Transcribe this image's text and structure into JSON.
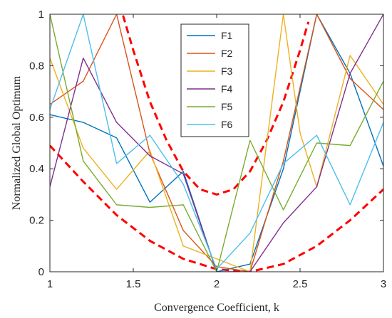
{
  "chart_data": {
    "type": "line",
    "title": "",
    "xlabel": "Convergence Coefficient, k",
    "ylabel": "Normalized Global Optimum",
    "xlim": [
      1,
      3
    ],
    "ylim": [
      0,
      1
    ],
    "x_ticks": [
      "1",
      "1.5",
      "2",
      "2.5",
      "3"
    ],
    "y_ticks": [
      "0",
      "0.2",
      "0.4",
      "0.6",
      "0.8",
      "1"
    ],
    "grid": false,
    "legend_position": "top-center",
    "series": [
      {
        "name": "F1",
        "color": "#0072BD",
        "x": [
          1.0,
          1.2,
          1.4,
          1.6,
          1.8,
          2.0,
          2.2,
          2.4,
          2.6,
          2.8,
          3.0
        ],
        "y": [
          0.61,
          0.58,
          0.52,
          0.27,
          0.39,
          0.0,
          0.03,
          0.4,
          1.0,
          0.77,
          0.41
        ]
      },
      {
        "name": "F2",
        "color": "#D95319",
        "x": [
          1.0,
          1.2,
          1.4,
          1.6,
          1.8,
          2.0,
          2.2,
          2.4,
          2.6,
          2.8,
          3.0
        ],
        "y": [
          0.65,
          0.74,
          1.0,
          0.46,
          0.16,
          0.02,
          0.0,
          0.43,
          1.0,
          0.75,
          0.63
        ]
      },
      {
        "name": "F3",
        "color": "#EDB120",
        "x": [
          1.0,
          1.2,
          1.4,
          1.6,
          1.8,
          2.0,
          2.2,
          2.4,
          2.5,
          2.6,
          2.8,
          3.0
        ],
        "y": [
          0.83,
          0.48,
          0.32,
          0.47,
          0.1,
          0.05,
          0.0,
          1.0,
          0.54,
          0.33,
          0.84,
          0.65
        ]
      },
      {
        "name": "F4",
        "color": "#7E2F8E",
        "x": [
          1.0,
          1.2,
          1.4,
          1.6,
          1.8,
          2.0,
          2.2,
          2.4,
          2.6,
          2.8,
          3.0
        ],
        "y": [
          0.33,
          0.83,
          0.58,
          0.45,
          0.38,
          0.0,
          0.0,
          0.19,
          0.33,
          0.77,
          1.0
        ]
      },
      {
        "name": "F5",
        "color": "#77AC30",
        "x": [
          1.0,
          1.2,
          1.4,
          1.6,
          1.8,
          2.0,
          2.2,
          2.4,
          2.6,
          2.8,
          3.0
        ],
        "y": [
          1.0,
          0.43,
          0.26,
          0.25,
          0.26,
          0.0,
          0.51,
          0.24,
          0.5,
          0.49,
          0.74
        ]
      },
      {
        "name": "F6",
        "color": "#4DBEEE",
        "x": [
          1.0,
          1.2,
          1.4,
          1.6,
          1.8,
          2.0,
          2.2,
          2.4,
          2.6,
          2.8,
          3.0
        ],
        "y": [
          0.63,
          1.0,
          0.42,
          0.53,
          0.34,
          0.01,
          0.15,
          0.42,
          0.53,
          0.26,
          0.58
        ]
      }
    ],
    "bounds": [
      {
        "kind": "upper",
        "color": "#FF0000",
        "x": [
          1.4,
          1.5,
          1.6,
          1.7,
          1.8,
          1.9,
          2.0,
          2.1,
          2.2,
          2.3,
          2.4,
          2.5,
          2.55
        ],
        "y": [
          1.08,
          0.86,
          0.66,
          0.51,
          0.39,
          0.32,
          0.3,
          0.32,
          0.39,
          0.51,
          0.66,
          0.86,
          0.97
        ]
      },
      {
        "kind": "lower",
        "color": "#FF0000",
        "x": [
          1.0,
          1.2,
          1.4,
          1.6,
          1.8,
          2.0,
          2.2,
          2.4,
          2.6,
          2.8,
          3.0
        ],
        "y": [
          0.49,
          0.35,
          0.22,
          0.12,
          0.05,
          0.01,
          0.0,
          0.03,
          0.1,
          0.2,
          0.32
        ]
      }
    ]
  }
}
